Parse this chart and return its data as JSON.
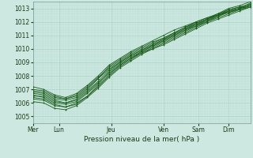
{
  "xlabel": "Pression niveau de la mer( hPa )",
  "ylim": [
    1004.5,
    1013.5
  ],
  "xlim": [
    0,
    100
  ],
  "yticks": [
    1005,
    1006,
    1007,
    1008,
    1009,
    1010,
    1011,
    1012,
    1013
  ],
  "xtick_labels": [
    "Mer",
    "Lun",
    "Jeu",
    "Ven",
    "Sam",
    "Dim"
  ],
  "xtick_positions": [
    0,
    12,
    36,
    60,
    76,
    90
  ],
  "background_color": "#cce8e0",
  "line_color": "#1a5c1a",
  "grid_major_color": "#aad4c8",
  "grid_minor_color": "#bcddd6",
  "series": [
    [
      1006.5,
      1006.5,
      1006.1,
      1006.0,
      1006.2,
      1006.8,
      1007.5,
      1008.2,
      1008.8,
      1009.3,
      1009.8,
      1010.2,
      1010.6,
      1011.0,
      1011.4,
      1011.8,
      1012.2,
      1012.6,
      1013.0,
      1013.2,
      1013.5
    ],
    [
      1006.3,
      1006.2,
      1005.8,
      1005.7,
      1006.0,
      1006.5,
      1007.2,
      1008.0,
      1008.7,
      1009.2,
      1009.7,
      1010.1,
      1010.5,
      1010.9,
      1011.3,
      1011.7,
      1012.1,
      1012.5,
      1012.9,
      1013.1,
      1013.3
    ],
    [
      1006.8,
      1006.7,
      1006.3,
      1006.2,
      1006.4,
      1007.0,
      1007.8,
      1008.5,
      1009.0,
      1009.5,
      1009.9,
      1010.3,
      1010.7,
      1011.1,
      1011.5,
      1011.9,
      1012.2,
      1012.5,
      1012.8,
      1013.0,
      1013.2
    ],
    [
      1007.0,
      1006.9,
      1006.5,
      1006.3,
      1006.6,
      1007.2,
      1007.9,
      1008.6,
      1009.1,
      1009.6,
      1010.0,
      1010.4,
      1010.8,
      1011.2,
      1011.6,
      1011.9,
      1012.2,
      1012.5,
      1012.7,
      1012.9,
      1013.1
    ],
    [
      1006.6,
      1006.4,
      1006.0,
      1005.9,
      1006.1,
      1006.7,
      1007.4,
      1008.3,
      1008.9,
      1009.4,
      1009.8,
      1010.2,
      1010.6,
      1011.0,
      1011.4,
      1011.7,
      1012.0,
      1012.4,
      1012.8,
      1013.0,
      1013.4
    ],
    [
      1006.4,
      1006.3,
      1005.9,
      1005.7,
      1005.9,
      1006.5,
      1007.3,
      1008.1,
      1008.8,
      1009.3,
      1009.7,
      1010.0,
      1010.4,
      1010.8,
      1011.2,
      1011.6,
      1012.0,
      1012.3,
      1012.6,
      1012.9,
      1013.2
    ],
    [
      1006.9,
      1006.8,
      1006.4,
      1006.3,
      1006.5,
      1007.1,
      1007.8,
      1008.7,
      1009.2,
      1009.7,
      1010.1,
      1010.5,
      1010.8,
      1011.2,
      1011.6,
      1012.0,
      1012.3,
      1012.6,
      1012.9,
      1013.1,
      1013.3
    ],
    [
      1006.7,
      1006.6,
      1006.2,
      1006.0,
      1006.3,
      1006.9,
      1007.6,
      1008.4,
      1009.0,
      1009.5,
      1009.9,
      1010.3,
      1010.7,
      1011.1,
      1011.5,
      1011.8,
      1012.1,
      1012.4,
      1012.7,
      1013.0,
      1013.2
    ],
    [
      1007.2,
      1007.0,
      1006.6,
      1006.4,
      1006.7,
      1007.3,
      1008.0,
      1008.8,
      1009.3,
      1009.8,
      1010.2,
      1010.6,
      1011.0,
      1011.4,
      1011.7,
      1012.0,
      1012.3,
      1012.5,
      1012.8,
      1013.0,
      1013.2
    ],
    [
      1006.1,
      1006.0,
      1005.6,
      1005.5,
      1005.8,
      1006.4,
      1007.1,
      1007.9,
      1008.6,
      1009.1,
      1009.6,
      1010.0,
      1010.3,
      1010.7,
      1011.1,
      1011.5,
      1011.9,
      1012.2,
      1012.5,
      1012.8,
      1013.1
    ]
  ]
}
